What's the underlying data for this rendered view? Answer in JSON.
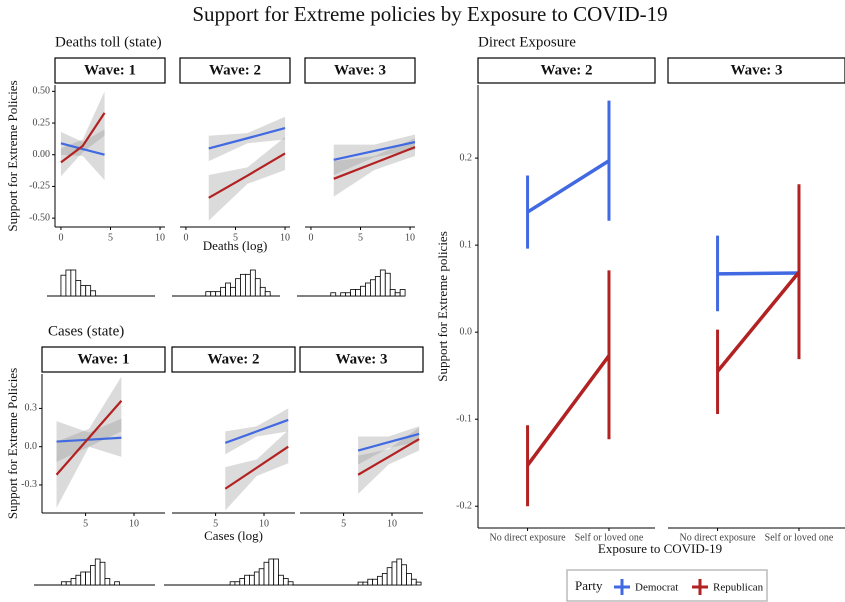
{
  "title": "Support for Extreme policies by Exposure to COVID-19",
  "chart_data": [
    {
      "type": "line",
      "title": "Deaths toll (state)",
      "y_label": "Support for Extreme Policies",
      "x_label": "Deaths (log)",
      "xlim": [
        -0.6,
        10.5
      ],
      "xticks": [
        0,
        5,
        10
      ],
      "ylim": [
        -0.57,
        0.55
      ],
      "yticks": [
        {
          "value": -0.5,
          "label": "-0.50"
        },
        -0.25,
        {
          "value": 0,
          "label": "0.00"
        },
        0.25,
        {
          "value": 0.5,
          "label": "0.50"
        }
      ],
      "facets": [
        {
          "label": "Wave: 1",
          "lines": [
            {
              "color": "#4169e1",
              "x": [
                0,
                2.2,
                4.4
              ],
              "values": [
                0.09,
                0.045,
                0.0
              ],
              "lower": [
                0.0,
                -0.01,
                -0.2
              ],
              "upper": [
                0.18,
                0.1,
                0.2
              ]
            },
            {
              "color": "#b22222",
              "x": [
                0,
                2.2,
                4.4
              ],
              "values": [
                -0.06,
                0.07,
                0.33
              ],
              "lower": [
                -0.17,
                0.02,
                0.15
              ],
              "upper": [
                0.05,
                0.12,
                0.5
              ]
            }
          ],
          "hist": {
            "bins": [
              0,
              0.5,
              1,
              1.5,
              2,
              2.5,
              3,
              3.5
            ],
            "counts": [
              4,
              5,
              5,
              3,
              2,
              2,
              1
            ]
          }
        },
        {
          "label": "Wave: 2",
          "lines": [
            {
              "color": "#4169e1",
              "x": [
                2.3,
                6.2,
                10
              ],
              "values": [
                0.05,
                0.13,
                0.21
              ],
              "lower": [
                -0.05,
                0.09,
                0.12
              ],
              "upper": [
                0.15,
                0.17,
                0.3
              ]
            },
            {
              "color": "#b22222",
              "x": [
                2.3,
                6.2,
                10
              ],
              "values": [
                -0.34,
                -0.165,
                0.01
              ],
              "lower": [
                -0.52,
                -0.23,
                -0.12
              ],
              "upper": [
                -0.16,
                -0.1,
                0.14
              ]
            }
          ],
          "hist": {
            "bins": [
              1.5,
              2,
              2.5,
              3,
              3.5,
              4,
              4.5,
              5,
              5.5,
              6,
              6.5,
              7,
              7.5,
              8,
              8.5
            ],
            "counts": [
              0,
              1,
              1,
              1,
              2,
              3,
              2,
              4,
              5,
              5,
              6,
              4,
              2,
              1
            ]
          }
        },
        {
          "label": "Wave: 3",
          "lines": [
            {
              "color": "#4169e1",
              "x": [
                2.3,
                6.4,
                10.5
              ],
              "values": [
                -0.04,
                0.03,
                0.1
              ],
              "lower": [
                -0.16,
                -0.02,
                0.04
              ],
              "upper": [
                0.08,
                0.08,
                0.16
              ]
            },
            {
              "color": "#b22222",
              "x": [
                2.3,
                6.4,
                10.5
              ],
              "values": [
                -0.19,
                -0.065,
                0.06
              ],
              "lower": [
                -0.33,
                -0.12,
                -0.01
              ],
              "upper": [
                -0.05,
                -0.01,
                0.13
              ]
            }
          ],
          "hist": {
            "bins": [
              2,
              2.5,
              3,
              3.5,
              4,
              4.5,
              5,
              5.5,
              6,
              6.5,
              7,
              7.5,
              8,
              8.5,
              9,
              9.5
            ],
            "counts": [
              1,
              0,
              1,
              1,
              2,
              2,
              3,
              4,
              5,
              6,
              8,
              7,
              2,
              1,
              2
            ]
          }
        }
      ]
    },
    {
      "type": "line",
      "title": "Cases (state)",
      "y_label": "Support for Extreme Policies",
      "x_label": "Cases (log)",
      "xlim": [
        0.5,
        13.2
      ],
      "xticks": [
        5,
        10
      ],
      "ylim": [
        -0.52,
        0.57
      ],
      "yticks": [
        -0.3,
        {
          "value": 0,
          "label": "0.0"
        },
        0.3
      ],
      "facets": [
        {
          "label": "Wave: 1",
          "lines": [
            {
              "color": "#4169e1",
              "x": [
                2,
                5.35,
                8.7
              ],
              "values": [
                0.04,
                0.055,
                0.07
              ],
              "lower": [
                -0.12,
                0.0,
                -0.08
              ],
              "upper": [
                0.2,
                0.11,
                0.22
              ]
            },
            {
              "color": "#b22222",
              "x": [
                2,
                5.35,
                8.7
              ],
              "values": [
                -0.22,
                0.07,
                0.36
              ],
              "lower": [
                -0.48,
                0.0,
                0.12
              ],
              "upper": [
                0.04,
                0.14,
                0.55
              ]
            }
          ],
          "hist": {
            "bins": [
              2,
              2.5,
              3,
              3.5,
              4,
              4.5,
              5,
              5.5,
              6,
              6.5,
              7,
              7.5,
              8,
              8.5,
              9
            ],
            "counts": [
              0,
              1,
              1,
              2,
              3,
              4,
              4,
              6,
              8,
              7,
              2,
              0,
              1,
              0
            ]
          }
        },
        {
          "label": "Wave: 2",
          "lines": [
            {
              "color": "#4169e1",
              "x": [
                6,
                9.25,
                12.5
              ],
              "values": [
                0.03,
                0.12,
                0.21
              ],
              "lower": [
                -0.06,
                0.08,
                0.12
              ],
              "upper": [
                0.12,
                0.16,
                0.3
              ]
            },
            {
              "color": "#b22222",
              "x": [
                6,
                9.25,
                12.5
              ],
              "values": [
                -0.33,
                -0.165,
                0.0
              ],
              "lower": [
                -0.5,
                -0.23,
                -0.13
              ],
              "upper": [
                -0.16,
                -0.1,
                0.13
              ]
            }
          ],
          "hist": {
            "bins": [
              6,
              6.5,
              7,
              7.5,
              8,
              8.5,
              9,
              9.5,
              10,
              10.5,
              11,
              11.5,
              12,
              12.5,
              13
            ],
            "counts": [
              0,
              1,
              1,
              2,
              3,
              3,
              4,
              5,
              7,
              8,
              8,
              3,
              2,
              1
            ]
          }
        },
        {
          "label": "Wave: 3",
          "lines": [
            {
              "color": "#4169e1",
              "x": [
                6.5,
                9.65,
                12.8
              ],
              "values": [
                -0.03,
                0.035,
                0.1
              ],
              "lower": [
                -0.14,
                -0.01,
                0.04
              ],
              "upper": [
                0.08,
                0.08,
                0.16
              ]
            },
            {
              "color": "#b22222",
              "x": [
                6.5,
                9.65,
                12.8
              ],
              "values": [
                -0.22,
                -0.08,
                0.06
              ],
              "lower": [
                -0.37,
                -0.14,
                -0.03
              ],
              "upper": [
                -0.07,
                -0.02,
                0.15
              ]
            }
          ],
          "hist": {
            "bins": [
              6,
              6.5,
              7,
              7.5,
              8,
              8.5,
              9,
              9.5,
              10,
              10.5,
              11,
              11.5,
              12,
              12.5,
              13
            ],
            "counts": [
              0,
              1,
              1,
              2,
              2,
              3,
              4,
              6,
              8,
              9,
              7,
              4,
              2,
              1
            ]
          }
        }
      ]
    },
    {
      "type": "errorbar",
      "title": "Direct Exposure",
      "y_label": "Support for Extreme policies",
      "x_label": "Exposure to COVID-19",
      "categories": [
        "No direct exposure",
        "Self or loved one"
      ],
      "facets": [
        "Wave: 2",
        "Wave: 3"
      ],
      "ylim": [
        -0.225,
        0.284
      ],
      "yticks": [
        -0.2,
        -0.1,
        {
          "value": 0,
          "label": "0.0"
        },
        0.1,
        0.2
      ],
      "legend_title": "Party",
      "series": [
        {
          "name": "Democrat",
          "color": "#4169e1",
          "values": [
            [
              0.138,
              0.197
            ],
            [
              0.067,
              0.068
            ]
          ],
          "lower": [
            [
              0.096,
              0.128
            ],
            [
              0.024,
              0.03
            ]
          ],
          "upper": [
            [
              0.18,
              0.266
            ],
            [
              0.111,
              0.106
            ]
          ]
        },
        {
          "name": "Republican",
          "color": "#b22222",
          "values": [
            [
              -0.153,
              -0.027
            ],
            [
              -0.045,
              0.069
            ]
          ],
          "lower": [
            [
              -0.2,
              -0.123
            ],
            [
              -0.094,
              -0.031
            ]
          ],
          "upper": [
            [
              -0.107,
              0.071
            ],
            [
              0.003,
              0.17
            ]
          ]
        }
      ]
    }
  ]
}
